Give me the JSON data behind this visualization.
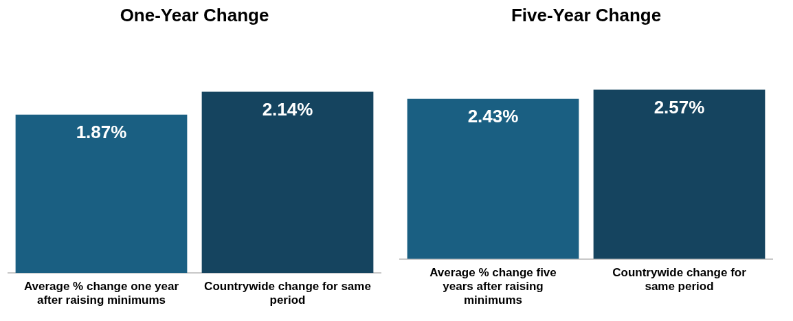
{
  "chart_data": [
    {
      "type": "bar",
      "title": "One-Year Change",
      "categories": [
        "Average % change one year after raising minimums",
        "Countrywide change for same period"
      ],
      "values": [
        1.87,
        2.14
      ],
      "value_labels": [
        "1.87%",
        "2.14%"
      ],
      "colors": [
        "#1a5f82",
        "#15445f"
      ],
      "legend": false,
      "grid": false
    },
    {
      "type": "bar",
      "title": "Five-Year Change",
      "categories": [
        "Average % change five years after raising minimums",
        "Countrywide change for same period"
      ],
      "values": [
        2.43,
        2.57
      ],
      "value_labels": [
        "2.43%",
        "2.57%"
      ],
      "colors": [
        "#1a5f82",
        "#15445f"
      ],
      "legend": false,
      "grid": false
    }
  ]
}
